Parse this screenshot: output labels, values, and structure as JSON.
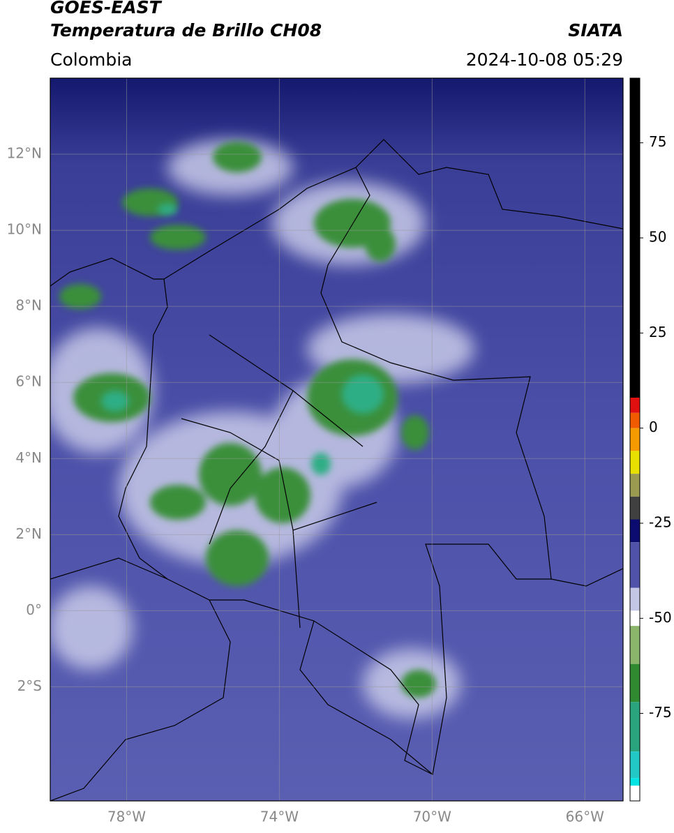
{
  "header": {
    "title": "GOES-EAST",
    "subtitle": "Temperatura de Brillo CH08",
    "source": "SIATA",
    "region": "Colombia",
    "datetime": "2024-10-08 05:29"
  },
  "chart_data": {
    "type": "map",
    "xlim": [
      -80,
      -65
    ],
    "ylim": [
      -5,
      14
    ],
    "xticks": [
      {
        "value": -78,
        "label": "78°W"
      },
      {
        "value": -74,
        "label": "74°W"
      },
      {
        "value": -70,
        "label": "70°W"
      },
      {
        "value": -66,
        "label": "66°W"
      }
    ],
    "yticks": [
      {
        "value": 12,
        "label": "12°N"
      },
      {
        "value": 10,
        "label": "10°N"
      },
      {
        "value": 8,
        "label": "8°N"
      },
      {
        "value": 6,
        "label": "6°N"
      },
      {
        "value": 4,
        "label": "4°N"
      },
      {
        "value": 2,
        "label": "2°N"
      },
      {
        "value": 0,
        "label": "0°"
      },
      {
        "value": -2,
        "label": "2°S"
      }
    ],
    "grid": true,
    "colorbar": {
      "lim": [
        -98,
        92
      ],
      "ticks": [
        75,
        50,
        25,
        0,
        -25,
        -50,
        -75
      ],
      "segments": [
        {
          "from": 92,
          "to": 8,
          "color": "#000000"
        },
        {
          "from": 8,
          "to": 4,
          "color": "#e01010"
        },
        {
          "from": 4,
          "to": 0,
          "color": "#f05a00"
        },
        {
          "from": 0,
          "to": -6,
          "color": "#f59a00"
        },
        {
          "from": -6,
          "to": -12,
          "color": "#e8e000"
        },
        {
          "from": -12,
          "to": -18,
          "color": "#9a9a50"
        },
        {
          "from": -18,
          "to": -24,
          "color": "#404040"
        },
        {
          "from": -24,
          "to": -30,
          "color": "#0c0c70"
        },
        {
          "from": -30,
          "to": -42,
          "color": "#4f52a8"
        },
        {
          "from": -42,
          "to": -48,
          "color": "#c4c6e6"
        },
        {
          "from": -48,
          "to": -52,
          "color": "#ffffff"
        },
        {
          "from": -52,
          "to": -62,
          "color": "#8cb56c"
        },
        {
          "from": -62,
          "to": -72,
          "color": "#2f8a30"
        },
        {
          "from": -72,
          "to": -85,
          "color": "#2aa47c"
        },
        {
          "from": -85,
          "to": -92,
          "color": "#22c8c6"
        },
        {
          "from": -92,
          "to": -94,
          "color": "#00e4e4"
        },
        {
          "from": -94,
          "to": -98,
          "color": "#ffffff"
        }
      ]
    }
  }
}
